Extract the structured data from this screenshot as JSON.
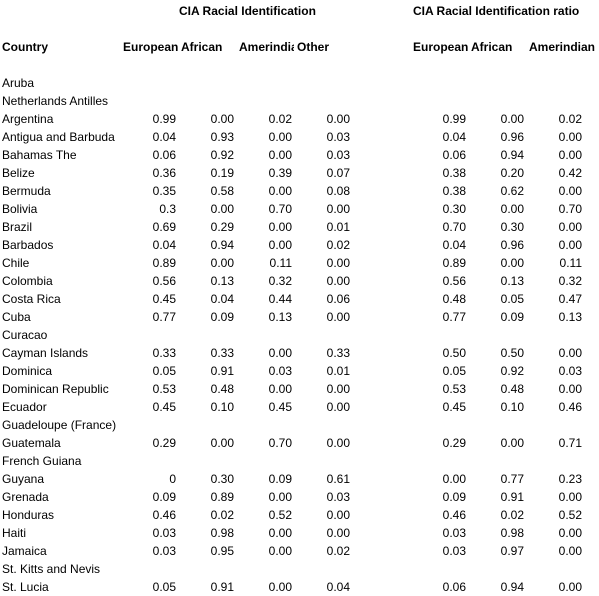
{
  "header": {
    "group1_title": "CIA Racial Identification",
    "group2_title": "CIA Racial Identification ratio",
    "col_country": "Country",
    "g1_european": "European",
    "g1_african": "African",
    "g1_amerindian": "Amerindian",
    "g1_other": "Other",
    "g2_european": "European",
    "g2_african": "African",
    "g2_amerindian": "Amerindian"
  },
  "rows": [
    {
      "country": "Aruba",
      "v": [
        "",
        "",
        "",
        ""
      ],
      "r": [
        "",
        "",
        ""
      ]
    },
    {
      "country": "Netherlands Antilles",
      "v": [
        "",
        "",
        "",
        ""
      ],
      "r": [
        "",
        "",
        ""
      ]
    },
    {
      "country": "Argentina",
      "v": [
        "0.99",
        "0.00",
        "0.02",
        "0.00"
      ],
      "r": [
        "0.99",
        "0.00",
        "0.02"
      ]
    },
    {
      "country": "Antigua and Barbuda",
      "v": [
        "0.04",
        "0.93",
        "0.00",
        "0.03"
      ],
      "r": [
        "0.04",
        "0.96",
        "0.00"
      ]
    },
    {
      "country": "Bahamas The",
      "v": [
        "0.06",
        "0.92",
        "0.00",
        "0.03"
      ],
      "r": [
        "0.06",
        "0.94",
        "0.00"
      ]
    },
    {
      "country": "Belize",
      "v": [
        "0.36",
        "0.19",
        "0.39",
        "0.07"
      ],
      "r": [
        "0.38",
        "0.20",
        "0.42"
      ]
    },
    {
      "country": "Bermuda",
      "v": [
        "0.35",
        "0.58",
        "0.00",
        "0.08"
      ],
      "r": [
        "0.38",
        "0.62",
        "0.00"
      ]
    },
    {
      "country": "Bolivia",
      "v": [
        "0.3",
        "0.00",
        "0.70",
        "0.00"
      ],
      "r": [
        "0.30",
        "0.00",
        "0.70"
      ]
    },
    {
      "country": "Brazil",
      "v": [
        "0.69",
        "0.29",
        "0.00",
        "0.01"
      ],
      "r": [
        "0.70",
        "0.30",
        "0.00"
      ]
    },
    {
      "country": "Barbados",
      "v": [
        "0.04",
        "0.94",
        "0.00",
        "0.02"
      ],
      "r": [
        "0.04",
        "0.96",
        "0.00"
      ]
    },
    {
      "country": "Chile",
      "v": [
        "0.89",
        "0.00",
        "0.11",
        "0.00"
      ],
      "r": [
        "0.89",
        "0.00",
        "0.11"
      ]
    },
    {
      "country": "Colombia",
      "v": [
        "0.56",
        "0.13",
        "0.32",
        "0.00"
      ],
      "r": [
        "0.56",
        "0.13",
        "0.32"
      ]
    },
    {
      "country": "Costa Rica",
      "v": [
        "0.45",
        "0.04",
        "0.44",
        "0.06"
      ],
      "r": [
        "0.48",
        "0.05",
        "0.47"
      ]
    },
    {
      "country": "Cuba",
      "v": [
        "0.77",
        "0.09",
        "0.13",
        "0.00"
      ],
      "r": [
        "0.77",
        "0.09",
        "0.13"
      ]
    },
    {
      "country": "Curacao",
      "v": [
        "",
        "",
        "",
        ""
      ],
      "r": [
        "",
        "",
        ""
      ]
    },
    {
      "country": "Cayman Islands",
      "v": [
        "0.33",
        "0.33",
        "0.00",
        "0.33"
      ],
      "r": [
        "0.50",
        "0.50",
        "0.00"
      ]
    },
    {
      "country": "Dominica",
      "v": [
        "0.05",
        "0.91",
        "0.03",
        "0.01"
      ],
      "r": [
        "0.05",
        "0.92",
        "0.03"
      ]
    },
    {
      "country": "Dominican Republic",
      "v": [
        "0.53",
        "0.48",
        "0.00",
        "0.00"
      ],
      "r": [
        "0.53",
        "0.48",
        "0.00"
      ]
    },
    {
      "country": "Ecuador",
      "v": [
        "0.45",
        "0.10",
        "0.45",
        "0.00"
      ],
      "r": [
        "0.45",
        "0.10",
        "0.46"
      ]
    },
    {
      "country": "Guadeloupe (France)",
      "v": [
        "",
        "",
        "",
        ""
      ],
      "r": [
        "",
        "",
        ""
      ]
    },
    {
      "country": "Guatemala",
      "v": [
        "0.29",
        "0.00",
        "0.70",
        "0.00"
      ],
      "r": [
        "0.29",
        "0.00",
        "0.71"
      ]
    },
    {
      "country": "French Guiana",
      "v": [
        "",
        "",
        "",
        ""
      ],
      "r": [
        "",
        "",
        ""
      ]
    },
    {
      "country": "Guyana",
      "v": [
        "0",
        "0.30",
        "0.09",
        "0.61"
      ],
      "r": [
        "0.00",
        "0.77",
        "0.23"
      ]
    },
    {
      "country": "Grenada",
      "v": [
        "0.09",
        "0.89",
        "0.00",
        "0.03"
      ],
      "r": [
        "0.09",
        "0.91",
        "0.00"
      ]
    },
    {
      "country": "Honduras",
      "v": [
        "0.46",
        "0.02",
        "0.52",
        "0.00"
      ],
      "r": [
        "0.46",
        "0.02",
        "0.52"
      ]
    },
    {
      "country": "Haiti",
      "v": [
        "0.03",
        "0.98",
        "0.00",
        "0.00"
      ],
      "r": [
        "0.03",
        "0.98",
        "0.00"
      ]
    },
    {
      "country": "Jamaica",
      "v": [
        "0.03",
        "0.95",
        "0.00",
        "0.02"
      ],
      "r": [
        "0.03",
        "0.97",
        "0.00"
      ]
    },
    {
      "country": "St. Kitts and Nevis",
      "v": [
        "",
        "",
        "",
        ""
      ],
      "r": [
        "",
        "",
        ""
      ]
    },
    {
      "country": "St. Lucia",
      "v": [
        "0.05",
        "0.91",
        "0.00",
        "0.04"
      ],
      "r": [
        "0.06",
        "0.94",
        "0.00"
      ]
    }
  ]
}
